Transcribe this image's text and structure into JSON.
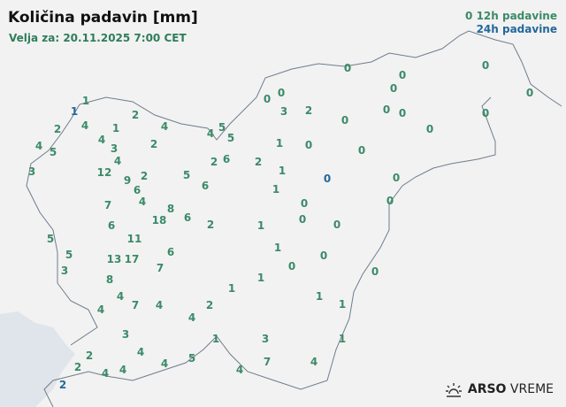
{
  "header": {
    "title": "Količina padavin [mm]",
    "valid": "Velja za: 20.11.2025 7:00 CET"
  },
  "legend": {
    "sample_value": "0",
    "label_12h": "12h padavine",
    "label_24h": "24h padavine"
  },
  "colors": {
    "value_12h": "#3b8a68",
    "value_24h": "#23689b",
    "land": "#f2f2f2",
    "sea": "#dfe5ea",
    "border": "#6f7c8c"
  },
  "logo": {
    "brand": "ARSO",
    "product": "VREME",
    "icon": "sun-icon"
  },
  "values": [
    {
      "v": "1",
      "t": "12h"
    },
    {
      "v": "1",
      "t": "24h"
    },
    {
      "v": "2",
      "t": "12h"
    },
    {
      "v": "2",
      "t": "12h"
    },
    {
      "v": "4",
      "t": "12h"
    },
    {
      "v": "1",
      "t": "12h"
    },
    {
      "v": "4",
      "t": "12h"
    },
    {
      "v": "4",
      "t": "12h"
    },
    {
      "v": "5",
      "t": "12h"
    },
    {
      "v": "4",
      "t": "12h"
    },
    {
      "v": "2",
      "t": "12h"
    },
    {
      "v": "3",
      "t": "12h"
    },
    {
      "v": "4",
      "t": "12h"
    },
    {
      "v": "5",
      "t": "12h"
    },
    {
      "v": "5",
      "t": "12h"
    },
    {
      "v": "3",
      "t": "12h"
    },
    {
      "v": "12",
      "t": "12h"
    },
    {
      "v": "4",
      "t": "12h"
    },
    {
      "v": "9",
      "t": "12h"
    },
    {
      "v": "2",
      "t": "12h"
    },
    {
      "v": "6",
      "t": "12h"
    },
    {
      "v": "4",
      "t": "12h"
    },
    {
      "v": "5",
      "t": "12h"
    },
    {
      "v": "6",
      "t": "12h"
    },
    {
      "v": "2",
      "t": "12h"
    },
    {
      "v": "6",
      "t": "12h"
    },
    {
      "v": "7",
      "t": "12h"
    },
    {
      "v": "6",
      "t": "12h"
    },
    {
      "v": "18",
      "t": "12h"
    },
    {
      "v": "8",
      "t": "12h"
    },
    {
      "v": "6",
      "t": "12h"
    },
    {
      "v": "2",
      "t": "12h"
    },
    {
      "v": "5",
      "t": "12h"
    },
    {
      "v": "11",
      "t": "12h"
    },
    {
      "v": "5",
      "t": "12h"
    },
    {
      "v": "3",
      "t": "12h"
    },
    {
      "v": "13",
      "t": "12h"
    },
    {
      "v": "17",
      "t": "12h"
    },
    {
      "v": "6",
      "t": "12h"
    },
    {
      "v": "7",
      "t": "12h"
    },
    {
      "v": "8",
      "t": "12h"
    },
    {
      "v": "4",
      "t": "12h"
    },
    {
      "v": "4",
      "t": "12h"
    },
    {
      "v": "7",
      "t": "12h"
    },
    {
      "v": "4",
      "t": "12h"
    },
    {
      "v": "2",
      "t": "12h"
    },
    {
      "v": "4",
      "t": "12h"
    },
    {
      "v": "1",
      "t": "12h"
    },
    {
      "v": "3",
      "t": "12h"
    },
    {
      "v": "4",
      "t": "12h"
    },
    {
      "v": "2",
      "t": "12h"
    },
    {
      "v": "2",
      "t": "12h"
    },
    {
      "v": "4",
      "t": "12h"
    },
    {
      "v": "4",
      "t": "12h"
    },
    {
      "v": "4",
      "t": "12h"
    },
    {
      "v": "5",
      "t": "12h"
    },
    {
      "v": "1",
      "t": "12h"
    },
    {
      "v": "4",
      "t": "12h"
    },
    {
      "v": "3",
      "t": "12h"
    },
    {
      "v": "7",
      "t": "12h"
    },
    {
      "v": "4",
      "t": "12h"
    },
    {
      "v": "2",
      "t": "24h"
    },
    {
      "v": "0",
      "t": "12h"
    },
    {
      "v": "0",
      "t": "12h"
    },
    {
      "v": "0",
      "t": "12h"
    },
    {
      "v": "0",
      "t": "12h"
    },
    {
      "v": "0",
      "t": "12h"
    },
    {
      "v": "0",
      "t": "12h"
    },
    {
      "v": "0",
      "t": "12h"
    },
    {
      "v": "3",
      "t": "12h"
    },
    {
      "v": "2",
      "t": "12h"
    },
    {
      "v": "0",
      "t": "12h"
    },
    {
      "v": "0",
      "t": "12h"
    },
    {
      "v": "0",
      "t": "12h"
    },
    {
      "v": "0",
      "t": "12h"
    },
    {
      "v": "0",
      "t": "12h"
    },
    {
      "v": "1",
      "t": "12h"
    },
    {
      "v": "0",
      "t": "12h"
    },
    {
      "v": "0",
      "t": "12h"
    },
    {
      "v": "2",
      "t": "12h"
    },
    {
      "v": "1",
      "t": "12h"
    },
    {
      "v": "0",
      "t": "24h"
    },
    {
      "v": "0",
      "t": "12h"
    },
    {
      "v": "1",
      "t": "12h"
    },
    {
      "v": "0",
      "t": "12h"
    },
    {
      "v": "0",
      "t": "12h"
    },
    {
      "v": "0",
      "t": "12h"
    },
    {
      "v": "0",
      "t": "12h"
    },
    {
      "v": "1",
      "t": "12h"
    },
    {
      "v": "1",
      "t": "12h"
    },
    {
      "v": "0",
      "t": "12h"
    },
    {
      "v": "0",
      "t": "12h"
    },
    {
      "v": "0",
      "t": "12h"
    },
    {
      "v": "1",
      "t": "12h"
    },
    {
      "v": "1",
      "t": "12h"
    },
    {
      "v": "1",
      "t": "12h"
    },
    {
      "v": "1",
      "t": "12h"
    }
  ]
}
